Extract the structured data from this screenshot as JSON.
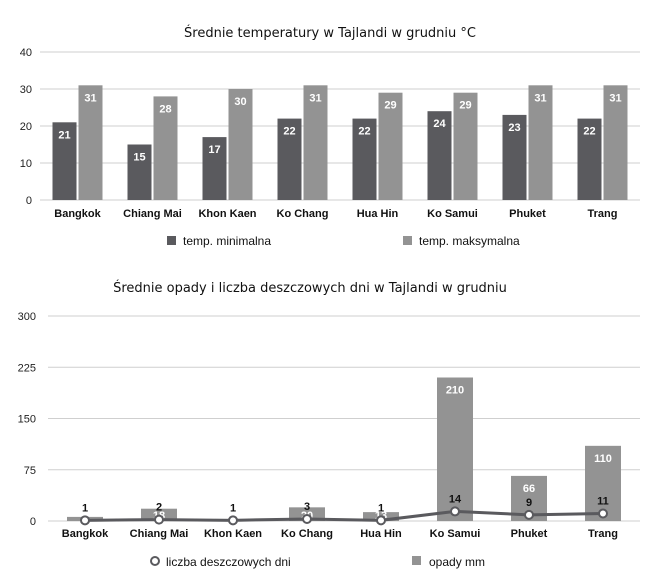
{
  "chart_data": [
    {
      "type": "bar",
      "title": "Średnie temperatury w Tajlandi w grudniu °C",
      "categories": [
        "Bangkok",
        "Chiang Mai",
        "Khon Kaen",
        "Ko Chang",
        "Hua Hin",
        "Ko Samui",
        "Phuket",
        "Trang"
      ],
      "series": [
        {
          "name": "temp. minimalna",
          "values": [
            21,
            15,
            17,
            22,
            22,
            24,
            23,
            22
          ],
          "color": "#5a5a5e"
        },
        {
          "name": "temp. maksymalna",
          "values": [
            31,
            28,
            30,
            31,
            29,
            29,
            31,
            31
          ],
          "color": "#939393"
        }
      ],
      "ylim": [
        0,
        40
      ],
      "yticks": [
        0,
        10,
        20,
        30,
        40
      ],
      "grid": true,
      "legend_position": "bottom"
    },
    {
      "type": "bar",
      "title": "Średnie opady i liczba deszczowych dni w Tajlandi w grudniu",
      "categories": [
        "Bangkok",
        "Chiang Mai",
        "Khon Kaen",
        "Ko Chang",
        "Hua Hin",
        "Ko Samui",
        "Phuket",
        "Trang"
      ],
      "series": [
        {
          "name": "liczba deszczowych dni",
          "type": "line",
          "values": [
            1,
            2,
            1,
            3,
            1,
            14,
            9,
            11
          ],
          "color": "#5a5a5e"
        },
        {
          "name": "opady mm",
          "type": "bar",
          "values": [
            6,
            18,
            3,
            20,
            13,
            210,
            66,
            110
          ],
          "color": "#939393"
        }
      ],
      "ylim": [
        0,
        300
      ],
      "yticks": [
        0,
        75,
        150,
        225,
        300
      ],
      "grid": true,
      "legend_position": "bottom"
    }
  ]
}
